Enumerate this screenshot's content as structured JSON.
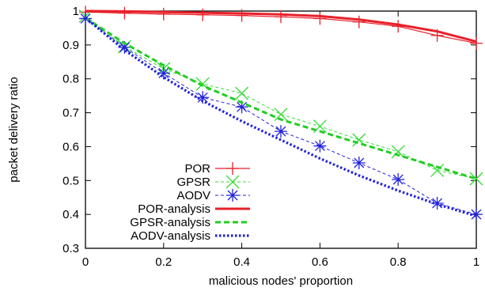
{
  "chart_data": {
    "type": "line",
    "xlabel": "malicious nodes' proportion",
    "ylabel": "packet delivery ratio",
    "xlim": [
      0,
      1
    ],
    "ylim": [
      0.3,
      1
    ],
    "xticks": [
      0,
      0.2,
      0.4,
      0.6,
      0.8,
      1
    ],
    "xtick_labels": [
      "0",
      "0.2",
      "0.4",
      "0.6",
      "0.8",
      "1"
    ],
    "yticks": [
      0.3,
      0.4,
      0.5,
      0.6,
      0.7,
      0.8,
      0.9,
      1
    ],
    "ytick_labels": [
      "0.3",
      "0.4",
      "0.5",
      "0.6",
      "0.7",
      "0.8",
      "0.9",
      "1"
    ],
    "legend_position": "bottom-left",
    "grid": false,
    "series": [
      {
        "name": "POR",
        "color": "#e8202a",
        "style": "thin-solid",
        "marker": "plus",
        "x": [
          0,
          0.1,
          0.2,
          0.3,
          0.4,
          0.5,
          0.6,
          0.7,
          0.8,
          0.9,
          1
        ],
        "y": [
          0.997,
          0.994,
          0.991,
          0.989,
          0.987,
          0.983,
          0.978,
          0.968,
          0.955,
          0.928,
          0.905
        ]
      },
      {
        "name": "GPSR",
        "color": "#33dd33",
        "style": "thin-dashed",
        "marker": "x",
        "x": [
          0,
          0.1,
          0.2,
          0.3,
          0.4,
          0.5,
          0.6,
          0.7,
          0.8,
          0.9,
          1
        ],
        "y": [
          0.985,
          0.895,
          0.83,
          0.785,
          0.757,
          0.695,
          0.66,
          0.62,
          0.585,
          0.53,
          0.505
        ]
      },
      {
        "name": "AODV",
        "color": "#2222dd",
        "style": "thin-dashed",
        "marker": "asterisk",
        "x": [
          0,
          0.1,
          0.2,
          0.3,
          0.4,
          0.5,
          0.6,
          0.7,
          0.8,
          0.9,
          1
        ],
        "y": [
          0.978,
          0.893,
          0.817,
          0.745,
          0.717,
          0.645,
          0.602,
          0.552,
          0.503,
          0.433,
          0.4
        ]
      },
      {
        "name": "POR-analysis",
        "color": "#e8202a",
        "style": "thick-solid",
        "marker": "none",
        "x": [
          0,
          0.1,
          0.2,
          0.3,
          0.4,
          0.5,
          0.6,
          0.7,
          0.8,
          0.9,
          1
        ],
        "y": [
          1.0,
          0.999,
          0.997,
          0.995,
          0.993,
          0.99,
          0.985,
          0.975,
          0.96,
          0.94,
          0.91
        ]
      },
      {
        "name": "GPSR-analysis",
        "color": "#22cc22",
        "style": "thick-dashed",
        "marker": "none",
        "x": [
          0,
          0.1,
          0.2,
          0.3,
          0.4,
          0.5,
          0.6,
          0.7,
          0.8,
          0.9,
          1
        ],
        "y": [
          0.98,
          0.905,
          0.84,
          0.78,
          0.73,
          0.68,
          0.645,
          0.61,
          0.575,
          0.54,
          0.505
        ]
      },
      {
        "name": "AODV-analysis",
        "color": "#2222dd",
        "style": "thick-dotted",
        "marker": "none",
        "x": [
          0,
          0.1,
          0.2,
          0.3,
          0.4,
          0.5,
          0.6,
          0.7,
          0.8,
          0.9,
          1
        ],
        "y": [
          0.98,
          0.885,
          0.805,
          0.735,
          0.675,
          0.62,
          0.565,
          0.515,
          0.47,
          0.43,
          0.395
        ]
      }
    ]
  }
}
